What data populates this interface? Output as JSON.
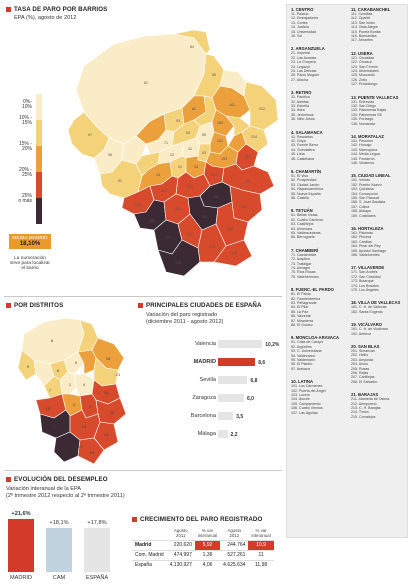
{
  "sections": {
    "barrios_title": "TASA DE PARO POR BARRIOS",
    "barrios_sub": "EPA (%), agosto de 2012",
    "distritos_title": "POR DISTRITOS",
    "ciudades_title": "PRINCIPALES CIUDADES DE ESPAÑA",
    "ciudades_sub": "Variación del paro registrado\n(diciembre 2011 - agosto 2012)",
    "evolucion_title": "EVOLUCIÓN DEL DESEMPLEO",
    "evolucion_sub": "Variación interanual de la EPA\n(2º trimestre 2012 respecto al 2º trimestre 2011)",
    "crecimiento_title": "CRECIMIENTO DEL PARO REGISTRADO"
  },
  "legend": {
    "items": [
      {
        "label": "0%-\n10%",
        "color": "#f9ecc6"
      },
      {
        "label": "10% -\n15%",
        "color": "#f4d27a"
      },
      {
        "label": "15% -\n20%",
        "color": "#eba03c"
      },
      {
        "label": "20% -\n25%",
        "color": "#d84a2c"
      },
      {
        "label": "25%\no más",
        "color": "#3b2a33"
      }
    ],
    "media_label": "MEDIA MADRID",
    "media_value": "18,10%",
    "note": "La numeración\nsirve para localizar\nel barrio"
  },
  "map_numbers": [
    "81",
    "84",
    "85",
    "93",
    "92",
    "94",
    "95",
    "87",
    "91",
    "82",
    "83",
    "96",
    "97",
    "151",
    "152",
    "153",
    "163",
    "164",
    "165",
    "162",
    "161",
    "71",
    "72",
    "73",
    "74",
    "75",
    "54",
    "55",
    "56",
    "44",
    "43",
    "45",
    "46",
    "41",
    "42",
    "31",
    "32",
    "33",
    "34",
    "36",
    "211",
    "212",
    "213",
    "214",
    "215",
    "201",
    "202",
    "204",
    "131",
    "132",
    "133",
    "134",
    "135",
    "121",
    "122",
    "171",
    "172",
    "181",
    "182",
    "183",
    "191",
    "192",
    "143",
    "144",
    "141",
    "142",
    "107",
    "101",
    "104",
    "115",
    "114",
    "113",
    "111",
    "105",
    "106",
    "12",
    "18",
    "19",
    "15",
    "16",
    "24",
    "25"
  ],
  "districts": {
    "col1": [
      {
        "title": "1. CENTRO",
        "items": [
          "11. Palacio",
          "12. Embajadores",
          "13. Cortes",
          "14. Justicia",
          "15. Universidad",
          "16. Sol"
        ]
      },
      {
        "title": "2. ARGANZUELA",
        "items": [
          "21. Imperial",
          "22. Las Acacias",
          "23. La Chopera",
          "24. Legazpi",
          "25. Las Delicias",
          "26. Palos Moguer",
          "27. Atocha"
        ]
      },
      {
        "title": "3. RETIRO",
        "items": [
          "31. Pacífico",
          "32. Adelfas",
          "33. Estrella",
          "34. Ibiza",
          "35. Jerónimos",
          "36. Niño Jesús"
        ]
      },
      {
        "title": "4. SALAMANCA",
        "items": [
          "41. Recoletos",
          "42. Goya",
          "43. Fuente Berro",
          "44. Guindalera",
          "45. Lista",
          "46. Castellana"
        ]
      },
      {
        "title": "5. CHAMARTÍN",
        "items": [
          "51. El Viso",
          "52. Prosperidad",
          "53. Ciudad Jardín",
          "54. Hispanoamérica",
          "55. Nueva España",
          "56. Castilla"
        ]
      },
      {
        "title": "6. TETUÁN",
        "items": [
          "61. Bellas Vistas",
          "62. Cuatro Caminos",
          "63. Castillejos",
          "64. Almenara",
          "65. Valdeacederas",
          "66. Berruguete"
        ]
      },
      {
        "title": "7. CHAMBERÍ",
        "items": [
          "71. Gaztambide",
          "72. Arapiles",
          "73. Trafalgar",
          "74. Almagro",
          "75. Ríos Rosas",
          "76. Vallehermoso"
        ]
      },
      {
        "title": "8. FUENC.-EL PARDO",
        "items": [
          "81. El Pardo",
          "82. Fuentelarreina",
          "83. Peñagrande",
          "84. El Pilar",
          "85. La Paz",
          "86. Valverde",
          "87. Mirasierra",
          "88. El Goloso"
        ]
      },
      {
        "title": "9. MONCLOA-ARAVACA",
        "items": [
          "91. Casa de Campo",
          "92. Argüelles",
          "93. C. Universitaria",
          "94. Valdezarza",
          "95. Valdemarín",
          "96. El Plantío",
          "97. Aravaca"
        ]
      },
      {
        "title": "10. LATINA",
        "items": [
          "101. Los Cármenes",
          "102. Puerta del Ángel",
          "103. Lucero",
          "104. Aluche",
          "105. Campamento",
          "106. Cuatro Vientos",
          "107. Las Águilas"
        ]
      }
    ],
    "col2": [
      {
        "title": "11. CARABANCHEL",
        "items": [
          "111. Comillas",
          "112. Opañel",
          "113. San Isidro",
          "114. Vista Alegre",
          "115. Puerta Bonita",
          "116. Buenavista",
          "117. Abrantes"
        ]
      },
      {
        "title": "12. USERA",
        "items": [
          "121. Orcasitas",
          "122. Orcasur",
          "123. San Fermín",
          "124. Almendrales",
          "125. Moscardó",
          "126. Zofío",
          "127. Pradolongo"
        ]
      },
      {
        "title": "13. PUENTE VALLECAS",
        "items": [
          "131. Entrevías",
          "132. San Diego",
          "133. Palomeras Bajas",
          "134. Palomeras SE",
          "135. Portazgo",
          "136. Numancia"
        ]
      },
      {
        "title": "14. MORATALAZ",
        "items": [
          "141. Pavones",
          "142. Horcajo",
          "143. Marroquina",
          "144. Media Legua",
          "145. Fontarrón",
          "146. Vinateros"
        ]
      },
      {
        "title": "15. CIUDAD LINEAL",
        "items": [
          "151. Ventas",
          "152. Pueblo Nuevo",
          "153. Quintana",
          "154. Concepción",
          "155. San Pascual",
          "156. S. Juan Bautista",
          "157. Colina",
          "158. Atalaya",
          "159. Costillares"
        ]
      },
      {
        "title": "16. HORTALEZA",
        "items": [
          "161. Palomas",
          "162. Piovera",
          "163. Canillas",
          "164. Pinar del Rey",
          "165. Apóstol Santiago",
          "166. Valdefuentes"
        ]
      },
      {
        "title": "17. VILLAVERDE",
        "items": [
          "171. San Andrés",
          "172. San Cristóbal",
          "173. Butarque",
          "174. Los Rosales",
          "175. Los Ángeles"
        ]
      },
      {
        "title": "18. VILLA DE VALLECAS",
        "items": [
          "181. C. H. de Vallecas",
          "182. Santa Eugenia"
        ]
      },
      {
        "title": "19. VICÁLVARO",
        "items": [
          "191. C. H. de Vicálvaro",
          "192. Ambroz"
        ]
      },
      {
        "title": "20. SAN BLAS",
        "items": [
          "201. Simancas",
          "202. Hellín",
          "203. Amposta",
          "204. Arcos",
          "205. Rosas",
          "206. Rejas",
          "207. Canillejas",
          "208. El Salvador"
        ]
      },
      {
        "title": "21. BARAJAS",
        "items": [
          "211. Alameda de Osuna",
          "212. Aeropuerto",
          "213. C. H. Barajas",
          "214. Timón",
          "215. Corralejos"
        ]
      }
    ]
  },
  "chart_data": [
    {
      "type": "bar",
      "title": "PRINCIPALES CIUDADES DE ESPAÑA",
      "subtitle": "Variación del paro registrado (diciembre 2011 - agosto 2012)",
      "categories": [
        "Valencia",
        "MADRID",
        "Sevilla",
        "Zaragoza",
        "Barcelona",
        "Málaga"
      ],
      "values": [
        10.2,
        8.6,
        6.8,
        6.0,
        3.5,
        2.2
      ],
      "value_labels": [
        "10,2%",
        "8,6",
        "6,8",
        "6,0",
        "3,5",
        "2,2"
      ],
      "highlight": "MADRID",
      "colors": {
        "default": "#e5e5e5",
        "highlight": "#d43a2a"
      }
    },
    {
      "type": "bar",
      "title": "EVOLUCIÓN DEL DESEMPLEO",
      "subtitle": "Variación interanual de la EPA (2º trimestre 2012 respecto al 2º trimestre 2011)",
      "categories": [
        "MADRID",
        "CAM",
        "ESPAÑA"
      ],
      "values": [
        21.6,
        18.1,
        17.8
      ],
      "value_labels": [
        "+21,6%",
        "+18,1%",
        "+17,8%"
      ],
      "colors": [
        "#d43a2a",
        "#c2d3e0",
        "#e5e5e5"
      ]
    },
    {
      "type": "table",
      "title": "CRECIMIENTO DEL PARO REGISTRADO",
      "columns": [
        "",
        "Agosto\n2011",
        "% var\ninteranual",
        "Agosto\n2012",
        "% var\ninteranual"
      ],
      "rows": [
        {
          "label": "Madrid",
          "cells": [
            "220.620",
            "5,92",
            "244.764",
            "10,9"
          ],
          "red": [
            1,
            3
          ]
        },
        {
          "label": "Com. Madrid",
          "cells": [
            "474.997",
            "1,36",
            "527.261",
            "11"
          ],
          "red": []
        },
        {
          "label": "España",
          "cells": [
            "4.130.927",
            "4,06",
            "4.625.634",
            "11,98"
          ],
          "red": []
        }
      ]
    }
  ]
}
